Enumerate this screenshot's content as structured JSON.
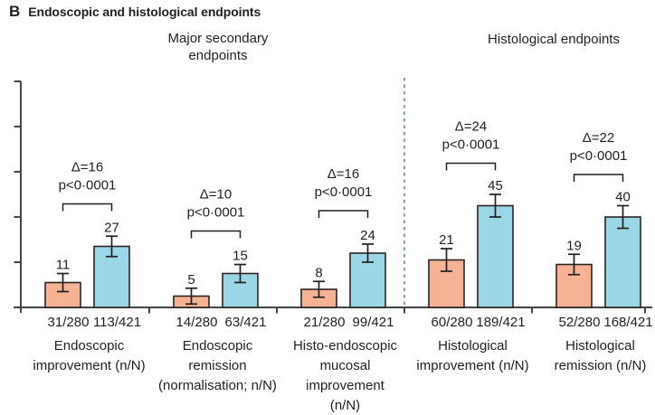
{
  "panel": {
    "letter": "B",
    "title": "Endoscopic and histological endpoints"
  },
  "section_headers": [
    {
      "lines": [
        "Major secondary",
        "endpoints"
      ]
    },
    {
      "lines": [
        "Histological endpoints"
      ]
    }
  ],
  "chart_data": {
    "type": "bar",
    "title": "Endoscopic and histological endpoints",
    "xlabel": "",
    "ylabel": "",
    "y_axis": {
      "min": 0,
      "max": 100,
      "tick_interval": 20,
      "tick_labels_shown": false
    },
    "grid": false,
    "legend_shown": false,
    "bar_series": [
      {
        "key": "comparator",
        "color": "#F6B294"
      },
      {
        "key": "active",
        "color": "#9CD7E8"
      }
    ],
    "divider": {
      "after_group_index": 2,
      "style": "dashed",
      "color": "#5E8CA0"
    },
    "groups": [
      {
        "section": "Major secondary endpoints",
        "category_lines": [
          "Endoscopic",
          "improvement (n/N)"
        ],
        "delta_label": "Δ=16",
        "p_label": "p<0·0001",
        "bars": [
          {
            "series": "comparator",
            "value": 11,
            "ci_half": 4,
            "fraction": "31/280"
          },
          {
            "series": "active",
            "value": 27,
            "ci_half": 4.5,
            "fraction": "113/421"
          }
        ]
      },
      {
        "section": "Major secondary endpoints",
        "category_lines": [
          "Endoscopic",
          "remission",
          "(normalisation; n/N)"
        ],
        "delta_label": "Δ=10",
        "p_label": "p<0·0001",
        "bars": [
          {
            "series": "comparator",
            "value": 5,
            "ci_half": 3.5,
            "fraction": "14/280"
          },
          {
            "series": "active",
            "value": 15,
            "ci_half": 4,
            "fraction": "63/421"
          }
        ]
      },
      {
        "section": "Major secondary endpoints",
        "category_lines": [
          "Histo-endoscopic",
          "mucosal",
          "improvement",
          "(n/N)"
        ],
        "delta_label": "Δ=16",
        "p_label": "p<0·0001",
        "bars": [
          {
            "series": "comparator",
            "value": 8,
            "ci_half": 3.5,
            "fraction": "21/280"
          },
          {
            "series": "active",
            "value": 24,
            "ci_half": 4,
            "fraction": "99/421"
          }
        ]
      },
      {
        "section": "Histological endpoints",
        "category_lines": [
          "Histological",
          "improvement (n/N)"
        ],
        "delta_label": "Δ=24",
        "p_label": "p<0·0001",
        "bars": [
          {
            "series": "comparator",
            "value": 21,
            "ci_half": 5,
            "fraction": "60/280"
          },
          {
            "series": "active",
            "value": 45,
            "ci_half": 5,
            "fraction": "189/421"
          }
        ]
      },
      {
        "section": "Histological endpoints",
        "category_lines": [
          "Histological",
          "remission (n/N)"
        ],
        "delta_label": "Δ=22",
        "p_label": "p<0·0001",
        "bars": [
          {
            "series": "comparator",
            "value": 19,
            "ci_half": 4.5,
            "fraction": "52/280"
          },
          {
            "series": "active",
            "value": 40,
            "ci_half": 5,
            "fraction": "168/421"
          }
        ]
      }
    ]
  },
  "colors": {
    "bar_comparator": "#F6B294",
    "bar_active": "#9CD7E8",
    "bar_border": "#2B2422",
    "axis": "#454545",
    "text": "#231F20",
    "divider": "#5E8CA0",
    "background": "#FFFFFF"
  }
}
